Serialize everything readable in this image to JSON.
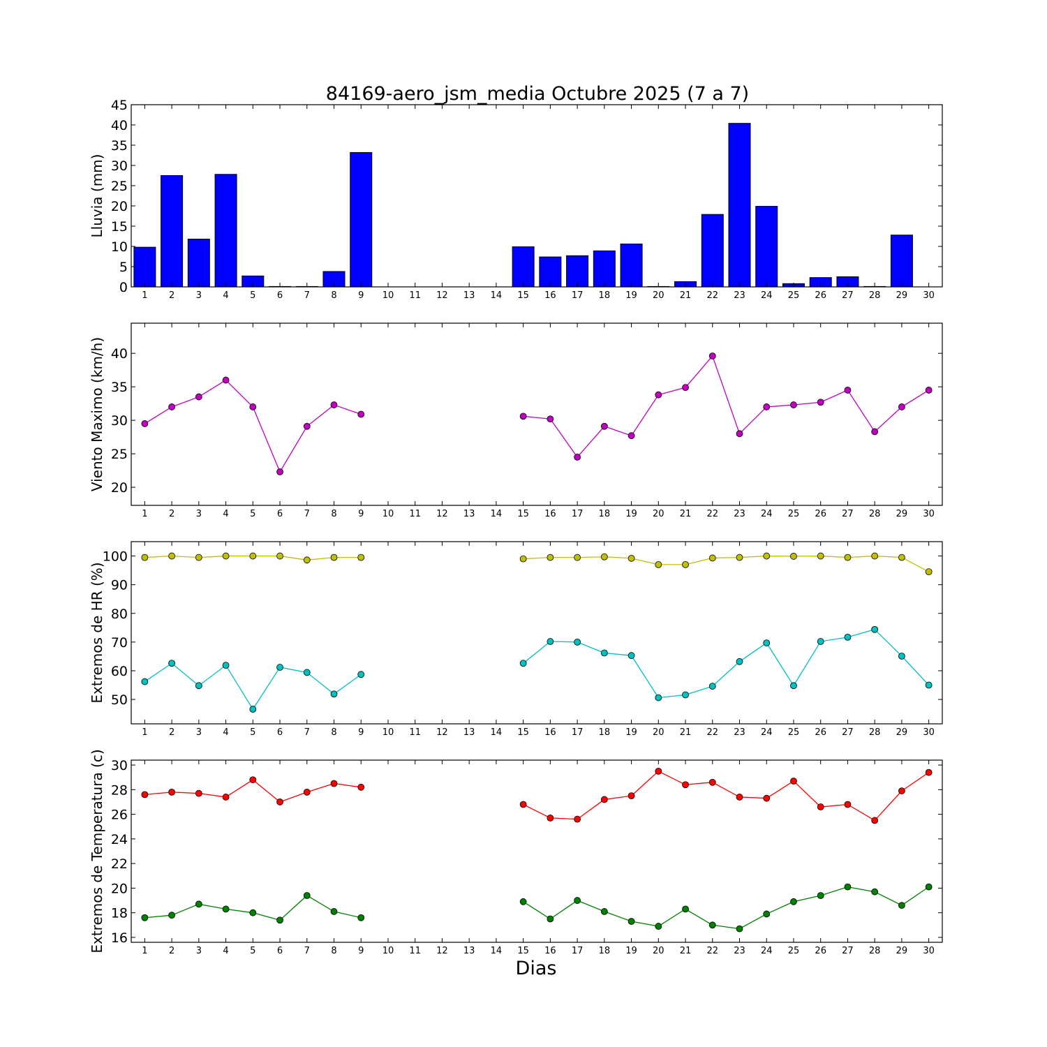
{
  "title": "84169-aero_jsm_media Octubre 2025  (7 a 7)",
  "xlabel": "Dias",
  "chart_data": [
    {
      "type": "bar",
      "ylabel": "Lluvia (mm)",
      "ylim": [
        0,
        45
      ],
      "yticks": [
        "0",
        "5",
        "10",
        "15",
        "20",
        "25",
        "30",
        "35",
        "40",
        "45"
      ],
      "x": [
        1,
        2,
        3,
        4,
        5,
        6,
        7,
        8,
        9,
        10,
        11,
        12,
        13,
        14,
        15,
        16,
        17,
        18,
        19,
        20,
        21,
        22,
        23,
        24,
        25,
        26,
        27,
        28,
        29,
        30
      ],
      "series": [
        {
          "color": "#0000ff",
          "values": [
            9.8,
            27.5,
            11.8,
            27.8,
            2.7,
            0.1,
            0.1,
            3.8,
            33.2,
            0,
            0,
            0,
            0,
            0,
            9.9,
            7.4,
            7.7,
            8.9,
            10.6,
            0.1,
            1.3,
            17.9,
            40.4,
            19.9,
            0.8,
            2.3,
            2.5,
            0.1,
            12.8,
            0
          ]
        }
      ]
    },
    {
      "type": "line",
      "ylabel": "Viento Maximo (km/h)",
      "ylim": [
        17.3,
        44.5
      ],
      "yticks": [
        "20",
        "25",
        "30",
        "35",
        "40"
      ],
      "x": [
        1,
        2,
        3,
        4,
        5,
        6,
        7,
        8,
        9,
        10,
        11,
        12,
        13,
        14,
        15,
        16,
        17,
        18,
        19,
        20,
        21,
        22,
        23,
        24,
        25,
        26,
        27,
        28,
        29,
        30
      ],
      "series": [
        {
          "color": "#bf00bf",
          "values": [
            29.5,
            32.0,
            33.5,
            36.0,
            32.0,
            22.3,
            29.1,
            32.3,
            30.9,
            null,
            null,
            null,
            null,
            null,
            30.6,
            30.2,
            24.5,
            29.1,
            27.7,
            33.8,
            34.9,
            39.6,
            28.0,
            32.0,
            32.3,
            32.7,
            34.5,
            28.3,
            32.0,
            34.5
          ]
        }
      ]
    },
    {
      "type": "line",
      "ylabel": "Extremos de HR (%)",
      "ylim": [
        41.5,
        105
      ],
      "yticks": [
        "50",
        "60",
        "70",
        "80",
        "90",
        "100"
      ],
      "x": [
        1,
        2,
        3,
        4,
        5,
        6,
        7,
        8,
        9,
        10,
        11,
        12,
        13,
        14,
        15,
        16,
        17,
        18,
        19,
        20,
        21,
        22,
        23,
        24,
        25,
        26,
        27,
        28,
        29,
        30
      ],
      "series": [
        {
          "color": "#bfbf00",
          "values": [
            99.5,
            100,
            99.5,
            100,
            100,
            100,
            98.6,
            99.5,
            99.5,
            null,
            null,
            null,
            null,
            null,
            99.0,
            99.5,
            99.5,
            99.7,
            99.2,
            97.0,
            97.0,
            99.3,
            99.5,
            100,
            99.9,
            100,
            99.5,
            100,
            99.5,
            94.5
          ]
        },
        {
          "color": "#00bfbf",
          "values": [
            56.2,
            62.6,
            54.8,
            61.9,
            46.6,
            61.2,
            59.4,
            51.9,
            58.7,
            null,
            null,
            null,
            null,
            null,
            62.6,
            70.2,
            70.0,
            66.2,
            65.3,
            50.6,
            51.6,
            54.6,
            63.2,
            69.7,
            54.8,
            70.2,
            71.7,
            74.4,
            65.1,
            55.0
          ]
        }
      ]
    },
    {
      "type": "line",
      "ylabel": "Extremos de Temperatura (c)",
      "ylim": [
        15.6,
        30.4
      ],
      "yticks": [
        "16",
        "18",
        "20",
        "22",
        "24",
        "26",
        "28",
        "30"
      ],
      "x": [
        1,
        2,
        3,
        4,
        5,
        6,
        7,
        8,
        9,
        10,
        11,
        12,
        13,
        14,
        15,
        16,
        17,
        18,
        19,
        20,
        21,
        22,
        23,
        24,
        25,
        26,
        27,
        28,
        29,
        30
      ],
      "series": [
        {
          "color": "#ff0000",
          "values": [
            27.6,
            27.8,
            27.7,
            27.4,
            28.8,
            27.0,
            27.8,
            28.5,
            28.2,
            null,
            null,
            null,
            null,
            null,
            26.8,
            25.7,
            25.6,
            27.2,
            27.5,
            29.5,
            28.4,
            28.6,
            27.4,
            27.3,
            28.7,
            26.6,
            26.8,
            25.5,
            27.9,
            29.4
          ]
        },
        {
          "color": "#008000",
          "values": [
            17.6,
            17.8,
            18.7,
            18.3,
            18.0,
            17.4,
            19.4,
            18.1,
            17.6,
            null,
            null,
            null,
            null,
            null,
            18.9,
            17.5,
            19.0,
            18.1,
            17.3,
            16.9,
            18.3,
            17.0,
            16.7,
            17.9,
            18.9,
            19.4,
            20.1,
            19.7,
            18.6,
            20.1
          ]
        }
      ]
    }
  ]
}
